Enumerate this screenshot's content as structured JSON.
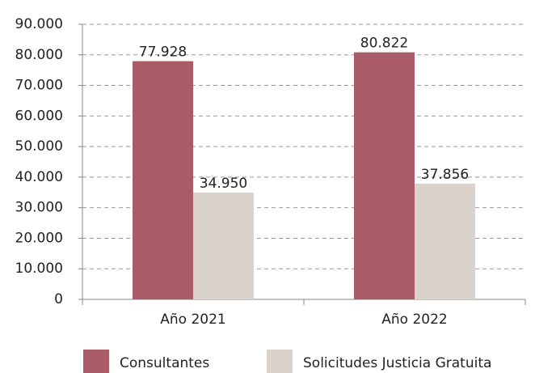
{
  "chart_data": {
    "type": "bar",
    "categories": [
      "Año 2021",
      "Año 2022"
    ],
    "series": [
      {
        "name": "Consultantes",
        "color": "#a95b67",
        "values": [
          77928,
          80822
        ],
        "value_labels": [
          "77.928",
          "80.822"
        ]
      },
      {
        "name": "Solicitudes Justicia Gratuita",
        "color": "#dad2cd",
        "values": [
          34950,
          37856
        ],
        "value_labels": [
          "34.950",
          "37.856"
        ]
      }
    ],
    "ylim": [
      0,
      90000
    ],
    "yticks": [
      0,
      {
        "value": 10000,
        "label": "10.000"
      },
      {
        "value": 20000,
        "label": "20.000"
      },
      {
        "value": 30000,
        "label": "30.000"
      },
      {
        "value": 40000,
        "label": "40.000"
      },
      {
        "value": 50000,
        "label": "50.000"
      },
      {
        "value": 60000,
        "label": "60.000"
      },
      {
        "value": 70000,
        "label": "70.000"
      },
      {
        "value": 80000,
        "label": "80.000"
      },
      {
        "value": 90000,
        "label": "90.000"
      }
    ],
    "grid": true,
    "legend": "bottom"
  }
}
